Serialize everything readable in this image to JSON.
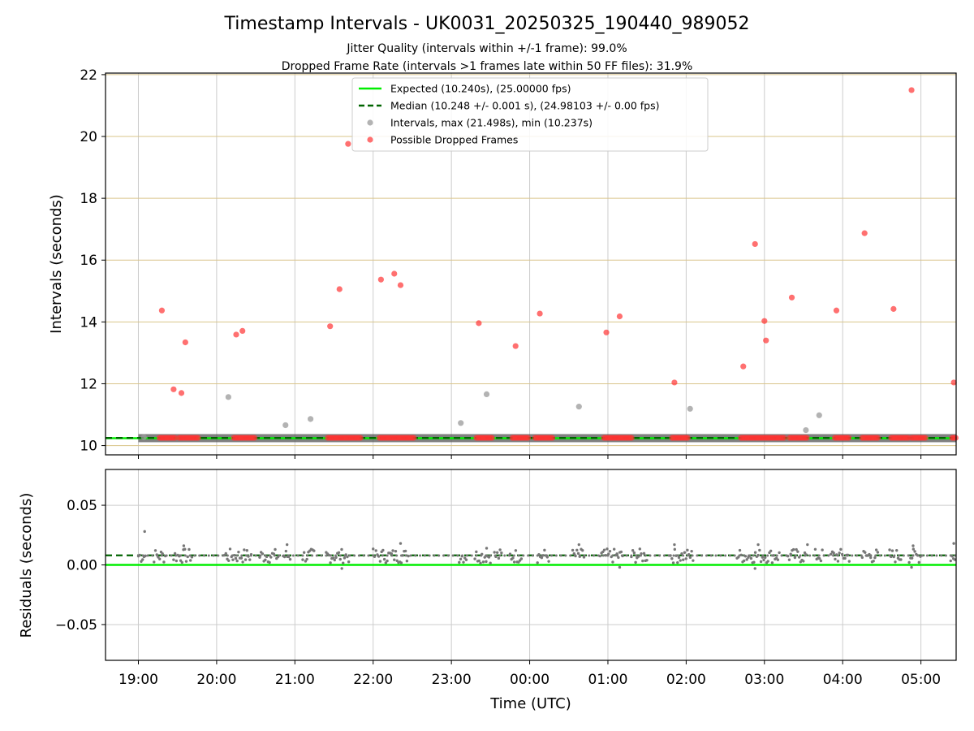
{
  "chart_data": [
    {
      "type": "scatter",
      "title": "Timestamp Intervals - UK0031_20250325_190440_989052",
      "subtitle_lines": [
        "Jitter Quality (intervals within +/-1 frame): 99.0%",
        "Dropped Frame Rate (intervals >1 frames late within 50 FF files): 31.9%"
      ],
      "xlabel": "",
      "ylabel": "Intervals (seconds)",
      "xlim": [
        18.58,
        29.45
      ],
      "ylim": [
        9.7,
        22.05
      ],
      "xticks": [
        19,
        20,
        21,
        22,
        23,
        24,
        25,
        26,
        27,
        28,
        29
      ],
      "xtick_labels": [
        "19:00",
        "20:00",
        "21:00",
        "22:00",
        "23:00",
        "00:00",
        "01:00",
        "02:00",
        "03:00",
        "04:00",
        "05:00"
      ],
      "yticks": [
        10,
        12,
        14,
        16,
        18,
        20,
        22
      ],
      "ytick_labels": [
        "10",
        "12",
        "14",
        "16",
        "18",
        "20",
        "22"
      ],
      "grid": true,
      "legend_position": "top-center",
      "colors": {
        "expected": "#00ee00",
        "median": "#006400",
        "intervals": "#999999",
        "dropped": "#ff3333",
        "hgrid": "#d9c48a",
        "vgrid": "#cccccc"
      },
      "expected_value": 10.24,
      "median_value": 10.248,
      "legend": [
        {
          "label": "Expected (10.240s), (25.00000 fps)",
          "style": "solid-line",
          "color": "#00ee00"
        },
        {
          "label": "Median (10.248 +/- 0.001 s), (24.98103 +/- 0.00 fps)",
          "style": "dashed-line",
          "color": "#006400"
        },
        {
          "label": "Intervals, max (21.498s), min (10.237s)",
          "style": "marker",
          "color": "#999999"
        },
        {
          "label": "Possible Dropped Frames",
          "style": "marker",
          "color": "#ff3333"
        }
      ],
      "series": [
        {
          "name": "Intervals, max (21.498s), min (10.237s)",
          "points": [
            [
              19.07,
              10.27
            ],
            [
              20.15,
              11.57
            ],
            [
              20.88,
              10.66
            ],
            [
              21.2,
              10.86
            ],
            [
              23.12,
              10.73
            ],
            [
              23.45,
              11.66
            ],
            [
              24.63,
              11.26
            ],
            [
              26.05,
              11.19
            ],
            [
              27.53,
              10.5
            ],
            [
              27.7,
              10.98
            ]
          ]
        },
        {
          "name": "Possible Dropped Frames",
          "points": [
            [
              19.3,
              14.37
            ],
            [
              19.45,
              11.82
            ],
            [
              19.55,
              11.7
            ],
            [
              19.6,
              13.34
            ],
            [
              20.25,
              13.59
            ],
            [
              20.33,
              13.71
            ],
            [
              21.45,
              13.86
            ],
            [
              21.57,
              15.06
            ],
            [
              21.68,
              19.76
            ],
            [
              22.1,
              15.37
            ],
            [
              22.27,
              15.56
            ],
            [
              22.35,
              15.19
            ],
            [
              23.35,
              13.96
            ],
            [
              23.82,
              13.22
            ],
            [
              24.13,
              14.27
            ],
            [
              24.98,
              13.66
            ],
            [
              25.15,
              14.18
            ],
            [
              25.85,
              12.04
            ],
            [
              26.73,
              12.56
            ],
            [
              26.88,
              16.52
            ],
            [
              27.0,
              14.03
            ],
            [
              27.02,
              13.4
            ],
            [
              27.35,
              14.79
            ],
            [
              27.92,
              14.37
            ],
            [
              28.28,
              16.87
            ],
            [
              28.65,
              14.42
            ],
            [
              28.88,
              21.5
            ],
            [
              29.42,
              12.04
            ]
          ]
        },
        {
          "name": "Possible Dropped Frames (clustered near 10.25)",
          "segments": [
            [
              19.27,
              19.48
            ],
            [
              19.52,
              19.77
            ],
            [
              20.22,
              20.5
            ],
            [
              21.42,
              21.85
            ],
            [
              22.08,
              22.52
            ],
            [
              23.32,
              23.52
            ],
            [
              23.78,
              23.98
            ],
            [
              24.07,
              24.3
            ],
            [
              24.95,
              25.32
            ],
            [
              25.82,
              26.02
            ],
            [
              26.7,
              27.25
            ],
            [
              27.32,
              27.55
            ],
            [
              27.9,
              28.08
            ],
            [
              28.25,
              28.45
            ],
            [
              28.62,
              28.85
            ],
            [
              28.88,
              29.07
            ],
            [
              29.4,
              29.45
            ]
          ],
          "y": 10.25
        }
      ]
    },
    {
      "type": "scatter",
      "title": "",
      "xlabel": "Time (UTC)",
      "ylabel": "Residuals (seconds)",
      "xlim": [
        18.58,
        29.45
      ],
      "ylim": [
        -0.08,
        0.08
      ],
      "xticks": [
        19,
        20,
        21,
        22,
        23,
        24,
        25,
        26,
        27,
        28,
        29
      ],
      "xtick_labels": [
        "19:00",
        "20:00",
        "21:00",
        "22:00",
        "23:00",
        "00:00",
        "01:00",
        "02:00",
        "03:00",
        "04:00",
        "05:00"
      ],
      "yticks": [
        -0.05,
        0.0,
        0.05
      ],
      "ytick_labels": [
        "−0.05",
        "0.00",
        "0.05"
      ],
      "grid": true,
      "expected_residual": 0.0,
      "median_residual": 0.008,
      "series": [
        {
          "name": "Residuals",
          "clusters": [
            [
              19.0,
              19.1
            ],
            [
              19.2,
              19.35
            ],
            [
              19.45,
              19.7
            ],
            [
              20.1,
              20.45
            ],
            [
              20.55,
              20.8
            ],
            [
              20.85,
              20.95
            ],
            [
              21.1,
              21.25
            ],
            [
              21.4,
              21.7
            ],
            [
              22.0,
              22.45
            ],
            [
              23.1,
              23.2
            ],
            [
              23.3,
              23.5
            ],
            [
              23.55,
              23.65
            ],
            [
              23.75,
              23.9
            ],
            [
              24.1,
              24.25
            ],
            [
              24.55,
              24.7
            ],
            [
              24.9,
              25.2
            ],
            [
              25.3,
              25.5
            ],
            [
              25.8,
              26.1
            ],
            [
              26.65,
              27.2
            ],
            [
              27.3,
              27.55
            ],
            [
              27.65,
              27.75
            ],
            [
              27.85,
              28.1
            ],
            [
              28.25,
              28.45
            ],
            [
              28.6,
              28.75
            ],
            [
              28.85,
              29.0
            ],
            [
              29.38,
              29.45
            ]
          ],
          "spikes": [
            [
              19.08,
              0.028
            ],
            [
              19.58,
              0.016
            ],
            [
              20.9,
              0.017
            ],
            [
              22.35,
              0.018
            ],
            [
              23.45,
              0.014
            ],
            [
              24.63,
              0.017
            ],
            [
              25.85,
              0.017
            ],
            [
              26.92,
              0.017
            ],
            [
              27.55,
              0.017
            ],
            [
              28.9,
              0.016
            ],
            [
              29.42,
              0.018
            ],
            [
              26.88,
              -0.003
            ],
            [
              21.6,
              -0.003
            ],
            [
              28.88,
              -0.002
            ],
            [
              25.15,
              -0.002
            ]
          ]
        }
      ]
    }
  ]
}
